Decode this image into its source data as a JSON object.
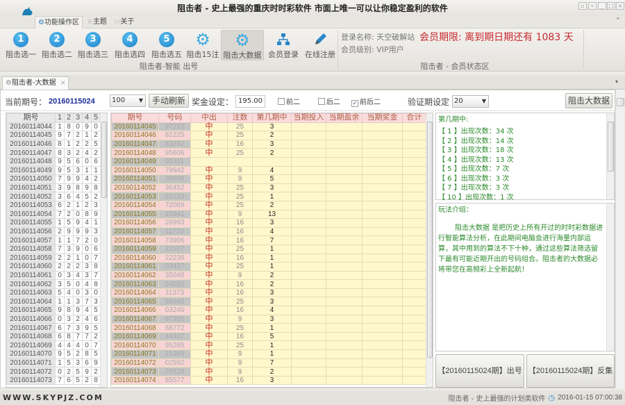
{
  "window": {
    "title": "阻击者 - 史上最强的重庆时时彩软件 市面上唯一可以让你稳定盈利的软件"
  },
  "menu": {
    "tabs": [
      "功能操作区",
      "主题",
      "关于"
    ]
  },
  "toolbar": {
    "buttons": [
      {
        "label": "阻击选一",
        "icon": "number-1-icon",
        "glyph": "1"
      },
      {
        "label": "阻击选二",
        "icon": "number-2-icon",
        "glyph": "2"
      },
      {
        "label": "阻击选三",
        "icon": "number-3-icon",
        "glyph": "3"
      },
      {
        "label": "阻击选四",
        "icon": "number-4-icon",
        "glyph": "4"
      },
      {
        "label": "阻击选五",
        "icon": "number-5-icon",
        "glyph": "5"
      },
      {
        "label": "阻击15注",
        "icon": "gear-icon",
        "glyph": ""
      },
      {
        "label": "阻击大数据",
        "icon": "gear-icon",
        "glyph": "",
        "active": true
      },
      {
        "label": "会员登录",
        "icon": "sitemap-icon",
        "glyph": ""
      },
      {
        "label": "在线注册",
        "icon": "pencil-icon",
        "glyph": ""
      }
    ],
    "group_label": "阻击者-智能 出号"
  },
  "member": {
    "login_name": "登录名称: 天空破解站",
    "level": "会员级别: VIP用户",
    "expiry": "会员期限: 离到期日期还有 1083 天",
    "group_label": "阻击者 - 会员状态区"
  },
  "doc_tab": {
    "label": "阻击者-大数据"
  },
  "controls": {
    "current_issue_label": "当前期号：",
    "current_issue": "20160115024",
    "count_select": "100",
    "refresh_button": "手动刷新",
    "prize_label": "奖金设定：",
    "prize_value": "195.00",
    "checkboxes": [
      {
        "label": "前二",
        "checked": false
      },
      {
        "label": "后二",
        "checked": false
      },
      {
        "label": "前后二",
        "checked": true
      }
    ],
    "verify_label": "验证期设定",
    "verify_select": "20",
    "run_button": "阻击大数据"
  },
  "left_table": {
    "headers": [
      "期号",
      "1",
      "2",
      "3",
      "4",
      "5"
    ],
    "rows": [
      [
        "20160114044",
        "18090"
      ],
      [
        "20160114045",
        "97212"
      ],
      [
        "20160114046",
        "81225"
      ],
      [
        "20160114047",
        "83242"
      ],
      [
        "20160114048",
        "95606"
      ],
      [
        "20160114049",
        "95311"
      ],
      [
        "20160114050",
        "79942"
      ],
      [
        "20160114051",
        "39898"
      ],
      [
        "20160114052",
        "36452"
      ],
      [
        "20160114053",
        "62123"
      ],
      [
        "20160114054",
        "72089"
      ],
      [
        "20160114055",
        "15941"
      ],
      [
        "20160114056",
        "29993"
      ],
      [
        "20160114057",
        "11720"
      ],
      [
        "20160114058",
        "73906"
      ],
      [
        "20160114059",
        "22107"
      ],
      [
        "20160114060",
        "22238"
      ],
      [
        "20160114061",
        "03437"
      ],
      [
        "20160114062",
        "35048"
      ],
      [
        "20160114063",
        "54030"
      ],
      [
        "20160114064",
        "11373"
      ],
      [
        "20160114065",
        "98945"
      ],
      [
        "20160114066",
        "03246"
      ],
      [
        "20160114067",
        "67395"
      ],
      [
        "20160114068",
        "68772"
      ],
      [
        "20160114069",
        "44407"
      ],
      [
        "20160114070",
        "95285"
      ],
      [
        "20160114071",
        "15369"
      ],
      [
        "20160114072",
        "02592"
      ],
      [
        "20160114073",
        "76528"
      ]
    ]
  },
  "main_table": {
    "headers": [
      "期号",
      "号码",
      "中出",
      "注数",
      "第几期中",
      "当期投入",
      "当期盈余",
      "当期奖金",
      "合计"
    ],
    "rows": [
      [
        "20160114045",
        "97212",
        "中",
        "25",
        "3"
      ],
      [
        "20160114046",
        "81225",
        "中",
        "25",
        "2"
      ],
      [
        "20160114047",
        "83242",
        "中",
        "16",
        "3"
      ],
      [
        "20160114048",
        "95606",
        "中",
        "25",
        "2"
      ],
      [
        "20160114049",
        "95311",
        "",
        "",
        ""
      ],
      [
        "20160114050",
        "79942",
        "中",
        "9",
        "4"
      ],
      [
        "20160114051",
        "39898",
        "中",
        "9",
        "5"
      ],
      [
        "20160114052",
        "36452",
        "中",
        "25",
        "3"
      ],
      [
        "20160114053",
        "62123",
        "中",
        "25",
        "1"
      ],
      [
        "20160114054",
        "72089",
        "中",
        "25",
        "2"
      ],
      [
        "20160114055",
        "15941",
        "中",
        "9",
        "13"
      ],
      [
        "20160114056",
        "29993",
        "中",
        "16",
        "3"
      ],
      [
        "20160114057",
        "11720",
        "中",
        "16",
        "4"
      ],
      [
        "20160114058",
        "73906",
        "中",
        "16",
        "7"
      ],
      [
        "20160114059",
        "22107",
        "中",
        "25",
        "1"
      ],
      [
        "20160114060",
        "22238",
        "中",
        "16",
        "1"
      ],
      [
        "20160114061",
        "03437",
        "中",
        "25",
        "1"
      ],
      [
        "20160114062",
        "35048",
        "中",
        "9",
        "2"
      ],
      [
        "20160114063",
        "54030",
        "中",
        "16",
        "2"
      ],
      [
        "20160114064",
        "11373",
        "中",
        "16",
        "3"
      ],
      [
        "20160114065",
        "98945",
        "中",
        "25",
        "3"
      ],
      [
        "20160114066",
        "03246",
        "中",
        "16",
        "4"
      ],
      [
        "20160114067",
        "67395",
        "中",
        "9",
        "3"
      ],
      [
        "20160114068",
        "68772",
        "中",
        "25",
        "1"
      ],
      [
        "20160114069",
        "44407",
        "中",
        "16",
        "5"
      ],
      [
        "20160114070",
        "95285",
        "中",
        "25",
        "1"
      ],
      [
        "20160114071",
        "15369",
        "中",
        "9",
        "1"
      ],
      [
        "20160114072",
        "02592",
        "中",
        "9",
        "7"
      ],
      [
        "20160114073",
        "76528",
        "中",
        "9",
        "2"
      ],
      [
        "20160114074",
        "85577",
        "中",
        "16",
        "3"
      ]
    ]
  },
  "stats_panel": {
    "title": "第几期中:",
    "lines": [
      "【 1 】出现次数：34 次",
      "【 2 】出现次数：14 次",
      "【 3 】出现次数：18 次",
      "【 4 】出现次数：13 次",
      "【 5 】出现次数：7 次",
      "【 6 】出现次数：3 次",
      "【 7 】出现次数：3 次",
      "【 10 】出现次数：1 次"
    ]
  },
  "intro_panel": {
    "title": "玩法介绍：",
    "body": "阻击大数据 是把历史上所有开过的时时彩数据进行智能算法分析，在此期间电脑会进行海量内部运算，其中用到的算法不下十种，通过这些算法筛选留下最有可能近期开出的号码组合。阻击者的大数据必将带您在高频彩上全新起航！"
  },
  "action_buttons": [
    "【20160115024期】出号",
    "【20160115024期】反集"
  ],
  "status": {
    "website": "WWW.SKYPJZ.COM",
    "slogan": "阻击者 - 史上最强的计划类软件",
    "datetime": "2016-01-15 07:00:38"
  },
  "colors": {
    "accent_blue": "#1a7ec8",
    "expiry_red": "#c8282c",
    "issue_blue": "#1c2f9a",
    "hit_red": "#c0281c",
    "panel_green": "#2c8a2c"
  }
}
